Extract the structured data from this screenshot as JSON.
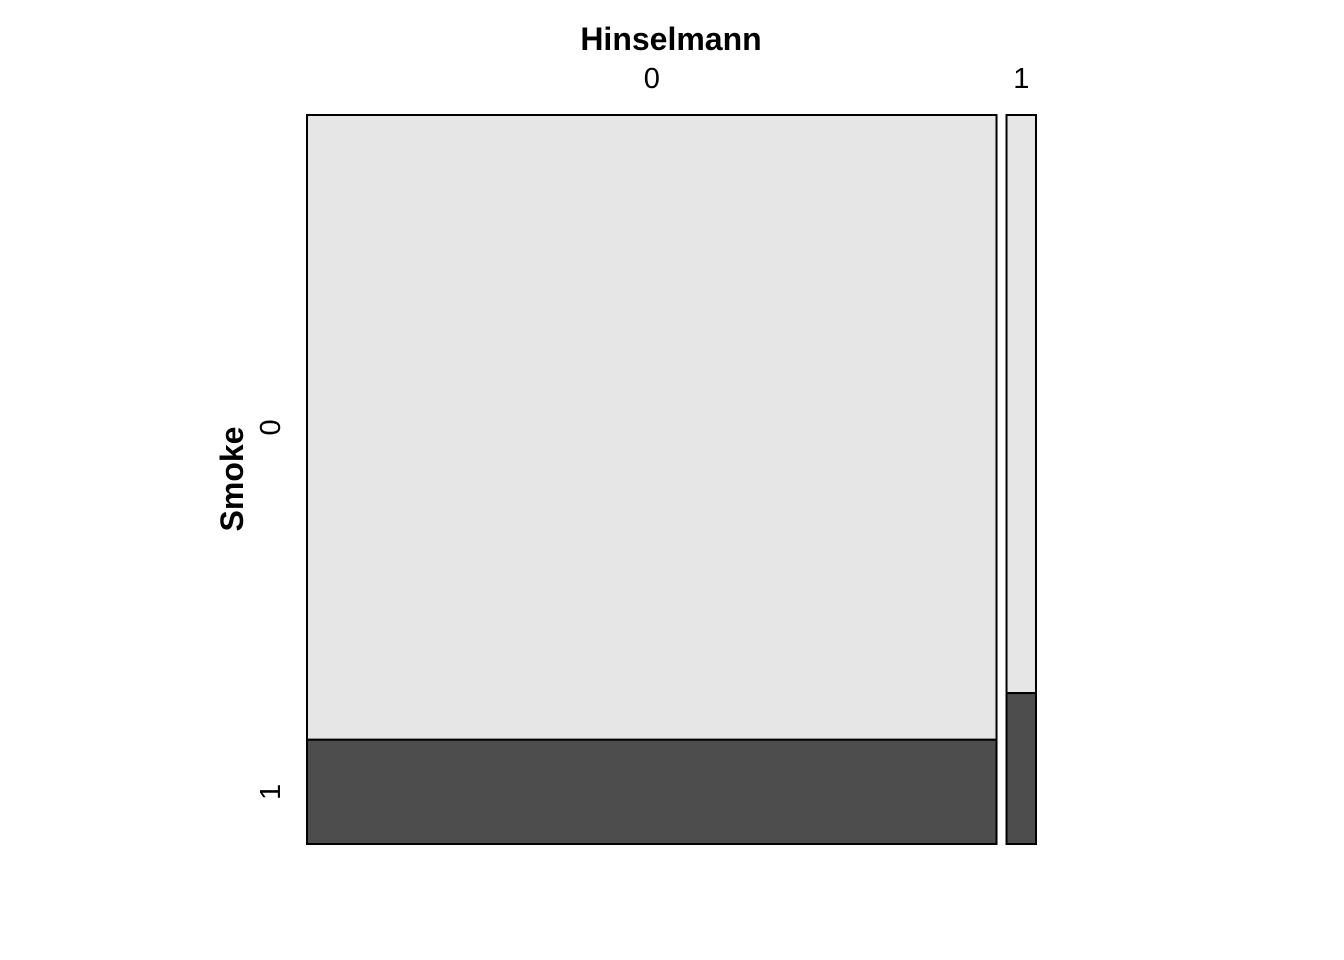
{
  "chart_data": {
    "type": "mosaic",
    "xlabel": "Hinselmann",
    "ylabel": "Smoke",
    "x_categories": [
      "0",
      "1"
    ],
    "y_categories": [
      "0",
      "1"
    ],
    "x_proportions": [
      0.959,
      0.041
    ],
    "conditional_y_proportions": [
      {
        "x": "0",
        "values": [
          0.857,
          0.143
        ]
      },
      {
        "x": "1",
        "values": [
          0.793,
          0.207
        ]
      }
    ],
    "colors": {
      "0": "#e6e6e6",
      "1": "#4d4d4d"
    },
    "border_color": "#000000"
  }
}
